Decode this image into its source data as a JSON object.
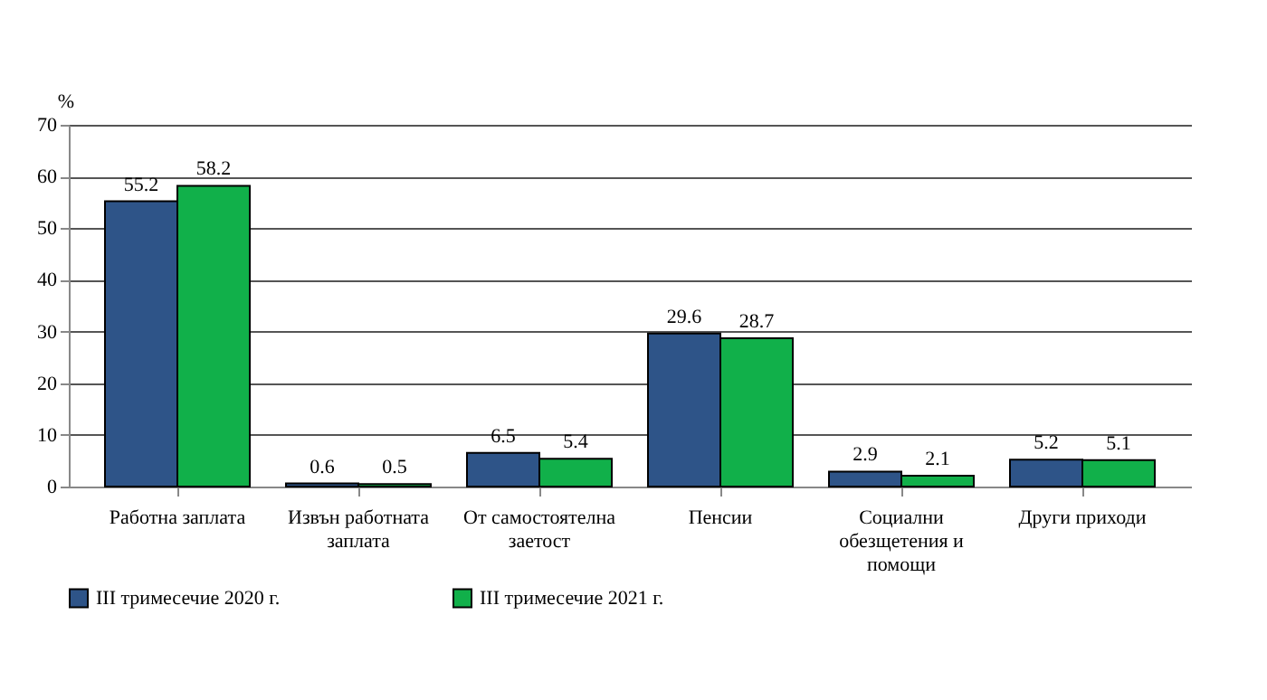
{
  "chart_data": {
    "type": "bar",
    "categories": [
      "Работна заплата",
      "Извън работната заплата",
      "От самостоятелна заетост",
      "Пенсии",
      "Социални обезщетения и помощи",
      "Други приходи"
    ],
    "series": [
      {
        "name": "III  тримесечие 2020 г.",
        "color": "#2e5488",
        "values": [
          55.2,
          0.6,
          6.5,
          29.6,
          2.9,
          5.2
        ]
      },
      {
        "name": "III  тримесечие 2021 г.",
        "color": "#11b04a",
        "values": [
          58.2,
          0.5,
          5.4,
          28.7,
          2.1,
          5.1
        ]
      }
    ],
    "ylabel": "%",
    "ylim": [
      0,
      70
    ],
    "yticks": [
      0,
      10,
      20,
      30,
      40,
      50,
      60,
      70
    ],
    "grid": "y",
    "legend": "bottom",
    "data_labels": true
  }
}
